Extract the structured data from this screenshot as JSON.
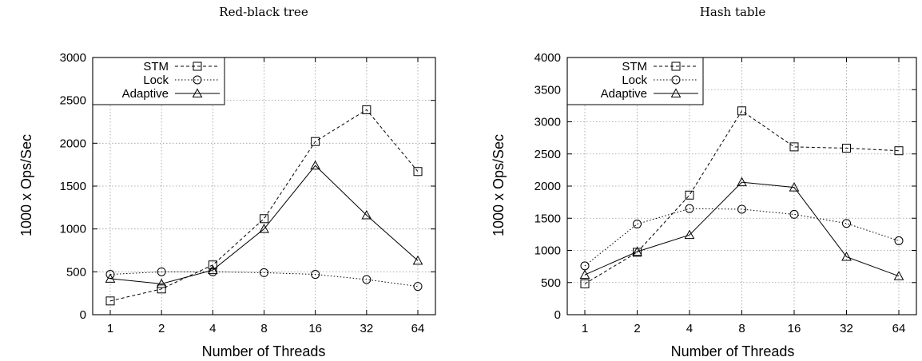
{
  "chart_data": [
    {
      "type": "line",
      "title": "Red-black tree",
      "xlabel": "Number of Threads",
      "ylabel": "1000 x Ops/Sec",
      "categories": [
        "1",
        "2",
        "4",
        "8",
        "16",
        "32",
        "64"
      ],
      "ylim": [
        0,
        3000
      ],
      "yticks": [
        "0",
        "500",
        "1000",
        "1500",
        "2000",
        "2500",
        "3000"
      ],
      "grid": true,
      "legend_position": "top-left",
      "series": [
        {
          "name": "STM",
          "marker": "square",
          "dash": "dashed",
          "values": [
            160,
            300,
            580,
            1120,
            2020,
            2390,
            1670
          ]
        },
        {
          "name": "Lock",
          "marker": "circle",
          "dash": "dotted",
          "values": [
            470,
            500,
            500,
            490,
            470,
            410,
            330
          ]
        },
        {
          "name": "Adaptive",
          "marker": "triangle",
          "dash": "solid",
          "values": [
            420,
            360,
            520,
            1000,
            1740,
            1160,
            630
          ]
        }
      ]
    },
    {
      "type": "line",
      "title": "Hash table",
      "xlabel": "Number of Threads",
      "ylabel": "1000 x Ops/Sec",
      "categories": [
        "1",
        "2",
        "4",
        "8",
        "16",
        "32",
        "64"
      ],
      "ylim": [
        0,
        4000
      ],
      "yticks": [
        "0",
        "500",
        "1000",
        "1500",
        "2000",
        "2500",
        "3000",
        "3500",
        "4000"
      ],
      "grid": true,
      "legend_position": "top-left",
      "series": [
        {
          "name": "STM",
          "marker": "square",
          "dash": "dashed",
          "values": [
            480,
            970,
            1860,
            3170,
            2610,
            2590,
            2550
          ]
        },
        {
          "name": "Lock",
          "marker": "circle",
          "dash": "dotted",
          "values": [
            760,
            1410,
            1650,
            1640,
            1560,
            1420,
            1150
          ]
        },
        {
          "name": "Adaptive",
          "marker": "triangle",
          "dash": "solid",
          "values": [
            620,
            980,
            1240,
            2060,
            1980,
            900,
            600
          ]
        }
      ]
    }
  ]
}
